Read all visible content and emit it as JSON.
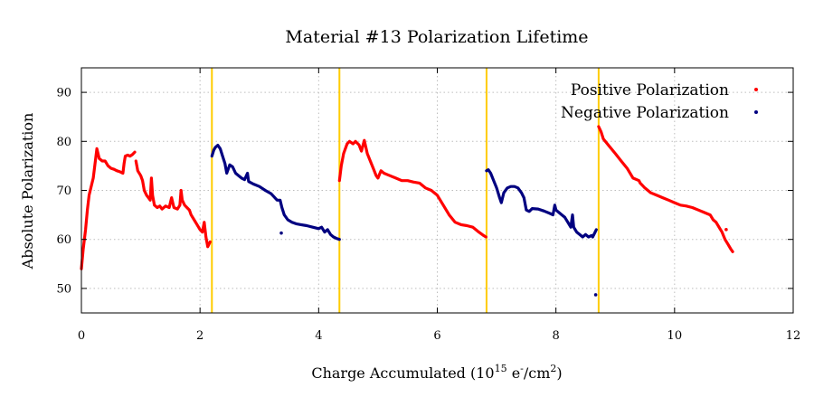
{
  "chart_data": {
    "type": "scatter",
    "title": "Material #13 Polarization Lifetime",
    "xlabel": {
      "prefix": "Charge Accumulated (10",
      "sup1": "15",
      "mid": " e",
      "sup2": "-",
      "mid2": "/cm",
      "sup3": "2",
      "suffix": ")"
    },
    "ylabel": "Absolute Polarization",
    "xlim": [
      0,
      12
    ],
    "ylim": [
      45,
      95
    ],
    "xticks": [
      0,
      2,
      4,
      6,
      8,
      10,
      12
    ],
    "yticks": [
      50,
      60,
      70,
      80,
      90
    ],
    "grid": true,
    "legend_position": "top-right",
    "vertical_lines": {
      "color": "#ffcc00",
      "x": [
        2.2,
        4.35,
        6.83,
        8.72
      ]
    },
    "series": [
      {
        "name": "Positive Polarization",
        "color": "#ff0000",
        "segments": [
          [
            [
              0.0,
              54
            ],
            [
              0.03,
              58
            ],
            [
              0.07,
              62
            ],
            [
              0.1,
              66
            ],
            [
              0.13,
              69
            ],
            [
              0.17,
              71
            ],
            [
              0.2,
              72.5
            ],
            [
              0.23,
              75.5
            ],
            [
              0.26,
              78.5
            ],
            [
              0.3,
              76.5
            ],
            [
              0.35,
              76
            ],
            [
              0.4,
              76
            ],
            [
              0.45,
              75
            ],
            [
              0.5,
              74.5
            ],
            [
              0.55,
              74.3
            ],
            [
              0.6,
              74
            ],
            [
              0.65,
              73.8
            ],
            [
              0.7,
              73.5
            ],
            [
              0.72,
              75.5
            ],
            [
              0.74,
              77
            ],
            [
              0.78,
              77.2
            ],
            [
              0.82,
              77
            ],
            [
              0.86,
              77.3
            ],
            [
              0.9,
              77.8
            ]
          ],
          [
            [
              0.92,
              76
            ],
            [
              0.95,
              74
            ],
            [
              1.0,
              73
            ],
            [
              1.03,
              72
            ],
            [
              1.06,
              70
            ],
            [
              1.1,
              69
            ],
            [
              1.13,
              68.5
            ],
            [
              1.16,
              68
            ],
            [
              1.18,
              72.5
            ],
            [
              1.2,
              69
            ],
            [
              1.23,
              67
            ],
            [
              1.28,
              66.5
            ],
            [
              1.32,
              66.8
            ],
            [
              1.36,
              66.2
            ],
            [
              1.42,
              66.8
            ],
            [
              1.48,
              66.5
            ],
            [
              1.52,
              68.5
            ],
            [
              1.56,
              66.5
            ],
            [
              1.62,
              66.2
            ],
            [
              1.66,
              67
            ],
            [
              1.68,
              70
            ],
            [
              1.7,
              68
            ],
            [
              1.74,
              67
            ],
            [
              1.78,
              66.5
            ],
            [
              1.82,
              66
            ],
            [
              1.85,
              65
            ],
            [
              1.9,
              64
            ],
            [
              1.95,
              63
            ],
            [
              2.0,
              62
            ],
            [
              2.04,
              61.5
            ],
            [
              2.07,
              63.5
            ],
            [
              2.1,
              60.5
            ],
            [
              2.13,
              58.5
            ],
            [
              2.17,
              59.5
            ]
          ],
          [
            [
              4.35,
              72
            ],
            [
              4.38,
              75
            ],
            [
              4.42,
              77.5
            ],
            [
              4.48,
              79.5
            ],
            [
              4.52,
              80
            ],
            [
              4.58,
              79.5
            ],
            [
              4.62,
              80
            ],
            [
              4.68,
              79.3
            ],
            [
              4.72,
              78
            ],
            [
              4.77,
              80.2
            ],
            [
              4.82,
              77.5
            ],
            [
              4.87,
              76
            ],
            [
              4.92,
              74.5
            ],
            [
              4.97,
              73
            ],
            [
              5.0,
              72.5
            ],
            [
              5.05,
              74
            ],
            [
              5.1,
              73.5
            ],
            [
              5.2,
              73
            ],
            [
              5.3,
              72.5
            ],
            [
              5.4,
              72
            ],
            [
              5.5,
              72
            ],
            [
              5.6,
              71.7
            ],
            [
              5.7,
              71.5
            ],
            [
              5.8,
              70.5
            ],
            [
              5.9,
              70
            ],
            [
              6.0,
              69
            ],
            [
              6.1,
              67
            ],
            [
              6.2,
              65
            ],
            [
              6.3,
              63.5
            ],
            [
              6.4,
              63
            ],
            [
              6.5,
              62.8
            ],
            [
              6.6,
              62.5
            ],
            [
              6.7,
              61.5
            ],
            [
              6.78,
              60.8
            ],
            [
              6.82,
              60.5
            ]
          ],
          [
            [
              8.72,
              83
            ],
            [
              8.76,
              82
            ],
            [
              8.8,
              80.5
            ],
            [
              8.9,
              79
            ],
            [
              9.0,
              77.5
            ],
            [
              9.1,
              76
            ],
            [
              9.2,
              74.5
            ],
            [
              9.3,
              72.5
            ],
            [
              9.4,
              72
            ],
            [
              9.42,
              71.5
            ],
            [
              9.5,
              70.5
            ],
            [
              9.6,
              69.5
            ],
            [
              9.7,
              69
            ],
            [
              9.8,
              68.5
            ],
            [
              9.9,
              68
            ],
            [
              10.0,
              67.5
            ],
            [
              10.1,
              67
            ],
            [
              10.2,
              66.8
            ],
            [
              10.3,
              66.5
            ],
            [
              10.4,
              66
            ],
            [
              10.5,
              65.5
            ],
            [
              10.6,
              65
            ],
            [
              10.65,
              64
            ],
            [
              10.7,
              63.5
            ],
            [
              10.75,
              62.5
            ],
            [
              10.8,
              61.5
            ],
            [
              10.85,
              60
            ],
            [
              10.9,
              59
            ],
            [
              10.95,
              58
            ],
            [
              10.98,
              57.5
            ]
          ]
        ],
        "points": [
          [
            10.87,
            62
          ]
        ]
      },
      {
        "name": "Negative Polarization",
        "color": "#000080",
        "segments": [
          [
            [
              2.2,
              77
            ],
            [
              2.23,
              78.2
            ],
            [
              2.26,
              78.8
            ],
            [
              2.3,
              79.2
            ],
            [
              2.34,
              78.5
            ],
            [
              2.38,
              77
            ],
            [
              2.42,
              75.5
            ],
            [
              2.45,
              73.5
            ],
            [
              2.5,
              75.2
            ],
            [
              2.55,
              74.8
            ],
            [
              2.6,
              73.5
            ],
            [
              2.65,
              73
            ],
            [
              2.7,
              72.5
            ],
            [
              2.75,
              72.2
            ],
            [
              2.8,
              73.5
            ],
            [
              2.82,
              71.8
            ],
            [
              2.9,
              71.3
            ],
            [
              3.0,
              70.8
            ],
            [
              3.1,
              70
            ],
            [
              3.2,
              69.3
            ],
            [
              3.3,
              68
            ],
            [
              3.35,
              68
            ],
            [
              3.38,
              66.5
            ],
            [
              3.42,
              65
            ],
            [
              3.48,
              64
            ],
            [
              3.55,
              63.5
            ],
            [
              3.62,
              63.2
            ],
            [
              3.7,
              63
            ],
            [
              3.8,
              62.8
            ],
            [
              3.9,
              62.5
            ],
            [
              4.0,
              62.2
            ],
            [
              4.05,
              62.5
            ],
            [
              4.1,
              61.5
            ],
            [
              4.15,
              62
            ],
            [
              4.2,
              61
            ],
            [
              4.25,
              60.5
            ],
            [
              4.3,
              60.2
            ],
            [
              4.35,
              60
            ]
          ],
          [
            [
              6.83,
              74
            ],
            [
              6.86,
              74.2
            ],
            [
              6.9,
              73.5
            ],
            [
              6.95,
              72
            ],
            [
              7.0,
              70.5
            ],
            [
              7.05,
              68.5
            ],
            [
              7.08,
              67.5
            ],
            [
              7.12,
              69.5
            ],
            [
              7.18,
              70.5
            ],
            [
              7.24,
              70.8
            ],
            [
              7.3,
              70.8
            ],
            [
              7.36,
              70.5
            ],
            [
              7.42,
              69.5
            ],
            [
              7.46,
              68.5
            ],
            [
              7.5,
              66
            ],
            [
              7.55,
              65.7
            ],
            [
              7.6,
              66.3
            ],
            [
              7.7,
              66.2
            ],
            [
              7.8,
              65.8
            ],
            [
              7.9,
              65.3
            ],
            [
              7.95,
              65
            ],
            [
              7.98,
              67
            ],
            [
              8.0,
              66
            ],
            [
              8.05,
              65.5
            ],
            [
              8.1,
              65
            ],
            [
              8.15,
              64.5
            ],
            [
              8.2,
              63.5
            ],
            [
              8.25,
              62.5
            ],
            [
              8.28,
              65
            ],
            [
              8.3,
              62.5
            ],
            [
              8.35,
              61.5
            ],
            [
              8.4,
              61
            ],
            [
              8.45,
              60.5
            ],
            [
              8.5,
              61
            ],
            [
              8.55,
              60.5
            ],
            [
              8.6,
              60.8
            ],
            [
              8.62,
              60.5
            ],
            [
              8.66,
              61.5
            ],
            [
              8.68,
              62
            ]
          ]
        ],
        "points": [
          [
            3.37,
            61.3
          ],
          [
            8.67,
            48.7
          ]
        ]
      }
    ]
  }
}
